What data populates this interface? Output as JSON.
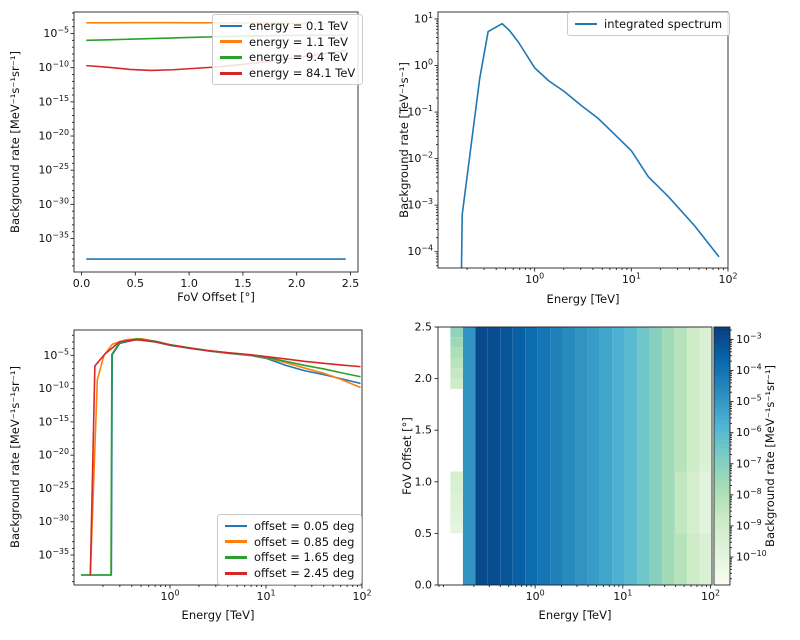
{
  "figure": {
    "background": "#ffffff"
  },
  "palette": {
    "blue": "#1f77b4",
    "orange": "#ff7f0e",
    "green": "#2ca02c",
    "red": "#d62728"
  },
  "chart_data": [
    {
      "id": "background-vs-offset",
      "type": "line",
      "xscale": "linear",
      "yscale": "log",
      "title": "",
      "xlabel": "FoV Offset [°]",
      "ylabel": "Background rate [MeV⁻¹s⁻¹sr⁻¹]",
      "xlim": [
        -0.07,
        2.57
      ],
      "ylim_log": [
        -39.9,
        -1.85
      ],
      "xticks": [
        0.0,
        0.5,
        1.0,
        1.5,
        2.0,
        2.5
      ],
      "ytick_exponents": [
        -5,
        -10,
        -15,
        -20,
        -25,
        -30,
        -35
      ],
      "legend_position": "upper right",
      "series": [
        {
          "name": "energy = 0.1 TeV",
          "color": "#1f77b4",
          "points": [
            [
              0.05,
              -38.0
            ],
            [
              2.45,
              -38.0
            ]
          ]
        },
        {
          "name": "energy = 1.1 TeV",
          "color": "#ff7f0e",
          "points": [
            [
              0.05,
              -3.44
            ],
            [
              0.25,
              -3.43
            ],
            [
              0.45,
              -3.42
            ],
            [
              0.65,
              -3.42
            ],
            [
              0.85,
              -3.42
            ],
            [
              1.05,
              -3.43
            ],
            [
              1.25,
              -3.44
            ],
            [
              1.45,
              -3.45
            ],
            [
              1.65,
              -3.47
            ],
            [
              1.85,
              -3.5
            ],
            [
              2.05,
              -3.53
            ],
            [
              2.25,
              -3.57
            ],
            [
              2.45,
              -3.62
            ]
          ]
        },
        {
          "name": "energy = 9.4 TeV",
          "color": "#2ca02c",
          "points": [
            [
              0.05,
              -6.0
            ],
            [
              0.25,
              -5.92
            ],
            [
              0.45,
              -5.83
            ],
            [
              0.65,
              -5.74
            ],
            [
              0.85,
              -5.65
            ],
            [
              1.05,
              -5.56
            ],
            [
              1.25,
              -5.47
            ],
            [
              1.45,
              -5.4
            ],
            [
              1.65,
              -5.34
            ],
            [
              1.85,
              -5.29
            ],
            [
              2.05,
              -5.26
            ],
            [
              2.25,
              -5.24
            ],
            [
              2.45,
              -5.23
            ]
          ]
        },
        {
          "name": "energy = 84.1 TeV",
          "color": "#d62728",
          "points": [
            [
              0.05,
              -9.7
            ],
            [
              0.25,
              -9.95
            ],
            [
              0.45,
              -10.25
            ],
            [
              0.65,
              -10.4
            ],
            [
              0.85,
              -10.3
            ],
            [
              1.05,
              -10.1
            ],
            [
              1.25,
              -9.9
            ],
            [
              1.45,
              -9.6
            ],
            [
              1.65,
              -9.25
            ],
            [
              1.85,
              -8.85
            ],
            [
              2.05,
              -8.4
            ],
            [
              2.25,
              -7.95
            ],
            [
              2.45,
              -7.5
            ]
          ]
        }
      ]
    },
    {
      "id": "integrated-spectrum",
      "type": "line",
      "xscale": "log",
      "yscale": "log",
      "title": "",
      "xlabel": "Energy [TeV]",
      "ylabel": "Background rate [TeV⁻¹s⁻¹]",
      "xlim": [
        0.1,
        100
      ],
      "ylim_log": [
        -4.35,
        1.15
      ],
      "xtick_exponents": [
        0,
        1,
        2
      ],
      "ytick_exponents": [
        1,
        0,
        -1,
        -2,
        -3,
        -4
      ],
      "legend_position": "upper right",
      "series": [
        {
          "name": "integrated spectrum",
          "color": "#1f77b4",
          "points": [
            [
              0.175,
              -4.35
            ],
            [
              0.178,
              -3.2
            ],
            [
              0.27,
              -0.28
            ],
            [
              0.33,
              0.73
            ],
            [
              0.46,
              0.9
            ],
            [
              0.55,
              0.75
            ],
            [
              0.68,
              0.5
            ],
            [
              1.0,
              -0.05
            ],
            [
              1.4,
              -0.33
            ],
            [
              2.0,
              -0.55
            ],
            [
              3.0,
              -0.85
            ],
            [
              4.5,
              -1.13
            ],
            [
              6.5,
              -1.45
            ],
            [
              10,
              -1.83
            ],
            [
              15,
              -2.39
            ],
            [
              24,
              -2.81
            ],
            [
              45,
              -3.44
            ],
            [
              80,
              -4.1
            ]
          ]
        }
      ]
    },
    {
      "id": "background-vs-energy",
      "type": "line",
      "xscale": "log",
      "yscale": "log",
      "title": "",
      "xlabel": "Energy [TeV]",
      "ylabel": "Background rate [MeV⁻¹s⁻¹sr⁻¹]",
      "xlim": [
        0.1,
        100
      ],
      "ylim_log": [
        -39.5,
        -1.2
      ],
      "xtick_exponents": [
        0,
        1,
        2
      ],
      "ytick_exponents": [
        -5,
        -10,
        -15,
        -20,
        -25,
        -30,
        -35
      ],
      "legend_position": "lower right",
      "series": [
        {
          "name": "offset = 0.05 deg",
          "color": "#1f77b4",
          "points": [
            [
              0.12,
              -38
            ],
            [
              0.245,
              -38
            ],
            [
              0.2502,
              -4.9
            ],
            [
              0.3,
              -3.2
            ],
            [
              0.45,
              -2.62
            ],
            [
              0.7,
              -3.0
            ],
            [
              1.0,
              -3.5
            ],
            [
              1.6,
              -3.95
            ],
            [
              2.5,
              -4.35
            ],
            [
              4,
              -4.7
            ],
            [
              7,
              -5.05
            ],
            [
              10,
              -5.45
            ],
            [
              16,
              -6.5
            ],
            [
              25,
              -7.3
            ],
            [
              40,
              -7.9
            ],
            [
              60,
              -8.5
            ],
            [
              95,
              -9.2
            ]
          ]
        },
        {
          "name": "offset = 0.85 deg",
          "color": "#ff7f0e",
          "points": [
            [
              0.148,
              -38
            ],
            [
              0.175,
              -8.7
            ],
            [
              0.205,
              -5.0
            ],
            [
              0.25,
              -3.35
            ],
            [
              0.35,
              -2.65
            ],
            [
              0.5,
              -2.5
            ],
            [
              0.7,
              -2.92
            ],
            [
              1.0,
              -3.42
            ],
            [
              1.6,
              -3.9
            ],
            [
              2.5,
              -4.3
            ],
            [
              4,
              -4.65
            ],
            [
              7,
              -5.0
            ],
            [
              10,
              -5.35
            ],
            [
              16,
              -6.1
            ],
            [
              25,
              -6.9
            ],
            [
              40,
              -7.7
            ],
            [
              60,
              -8.6
            ],
            [
              95,
              -9.8
            ]
          ]
        },
        {
          "name": "offset = 1.65 deg",
          "color": "#2ca02c",
          "points": [
            [
              0.12,
              -38
            ],
            [
              0.243,
              -38
            ],
            [
              0.248,
              -4.85
            ],
            [
              0.3,
              -3.05
            ],
            [
              0.45,
              -2.52
            ],
            [
              0.7,
              -2.88
            ],
            [
              1.0,
              -3.4
            ],
            [
              1.6,
              -3.88
            ],
            [
              2.5,
              -4.28
            ],
            [
              4,
              -4.62
            ],
            [
              7,
              -4.97
            ],
            [
              10,
              -5.3
            ],
            [
              16,
              -5.9
            ],
            [
              25,
              -6.5
            ],
            [
              40,
              -7.05
            ],
            [
              60,
              -7.6
            ],
            [
              95,
              -8.2
            ]
          ]
        },
        {
          "name": "offset = 2.45 deg",
          "color": "#d62728",
          "points": [
            [
              0.148,
              -38
            ],
            [
              0.165,
              -6.6
            ],
            [
              0.21,
              -4.8
            ],
            [
              0.3,
              -2.95
            ],
            [
              0.45,
              -2.68
            ],
            [
              0.7,
              -2.95
            ],
            [
              1.0,
              -3.45
            ],
            [
              1.6,
              -3.92
            ],
            [
              2.5,
              -4.3
            ],
            [
              4,
              -4.6
            ],
            [
              7,
              -4.93
            ],
            [
              10,
              -5.18
            ],
            [
              16,
              -5.55
            ],
            [
              25,
              -5.9
            ],
            [
              40,
              -6.2
            ],
            [
              60,
              -6.45
            ],
            [
              95,
              -6.7
            ]
          ]
        }
      ]
    },
    {
      "id": "background-map",
      "type": "heatmap",
      "xscale": "log",
      "yscale": "linear",
      "title": "",
      "xlabel": "Energy [TeV]",
      "ylabel": "FoV Offset [°]",
      "xlim": [
        0.078,
        104
      ],
      "ylim": [
        0.0,
        2.5
      ],
      "xtick_exponents": [
        0,
        1,
        2
      ],
      "yticks": [
        0.0,
        0.5,
        1.0,
        1.5,
        2.0,
        2.5
      ],
      "energy_edges": [
        0.078,
        0.108,
        0.15,
        0.208,
        0.288,
        0.4,
        0.555,
        0.77,
        1.07,
        1.48,
        2.05,
        2.85,
        3.95,
        5.48,
        7.6,
        10.55,
        14.6,
        20.3,
        28.1,
        39.0,
        54.1,
        75.0,
        104
      ],
      "columns_log10_rate": [
        null,
        null,
        -4.9,
        -2.85,
        -2.95,
        -3.15,
        -3.45,
        -3.75,
        -4.05,
        -4.35,
        -4.62,
        -4.87,
        -5.1,
        -5.35,
        -5.65,
        -6.0,
        -6.5,
        -7.0,
        -7.6,
        -8.2,
        -8.9,
        -9.6
      ],
      "cell_patches": [
        [
          1,
          2.4,
          2.5,
          -7.2
        ],
        [
          1,
          2.3,
          2.4,
          -7.5
        ],
        [
          1,
          2.2,
          2.3,
          -7.9
        ],
        [
          1,
          2.1,
          2.2,
          -8.25
        ],
        [
          1,
          2.0,
          2.1,
          -8.6
        ],
        [
          1,
          1.9,
          2.0,
          -9.0
        ],
        [
          1,
          1.0,
          1.1,
          -9.3
        ],
        [
          1,
          0.9,
          1.0,
          -9.45
        ],
        [
          1,
          0.8,
          0.9,
          -9.6
        ],
        [
          1,
          0.7,
          0.8,
          -9.7
        ],
        [
          1,
          0.6,
          0.7,
          -9.85
        ],
        [
          1,
          0.5,
          0.6,
          -10.1
        ],
        [
          19,
          0.5,
          1.1,
          -8.55
        ],
        [
          20,
          0.5,
          1.1,
          -9.25
        ],
        [
          21,
          0.5,
          1.1,
          -10.0
        ]
      ],
      "colorbar": {
        "label": "Background rate [MeV⁻¹s⁻¹sr⁻¹]",
        "vmin_log": -10.9,
        "vmax_log": -2.6,
        "tick_exponents": [
          -3,
          -4,
          -5,
          -6,
          -7,
          -8,
          -9,
          -10
        ]
      },
      "colormap": {
        "name": "GnBu",
        "stops": [
          "#f7fcf0",
          "#e0f3db",
          "#ccebc5",
          "#a8ddb5",
          "#7bccc4",
          "#4eb3d3",
          "#2b8cbe",
          "#0868ac",
          "#084081"
        ]
      }
    }
  ]
}
